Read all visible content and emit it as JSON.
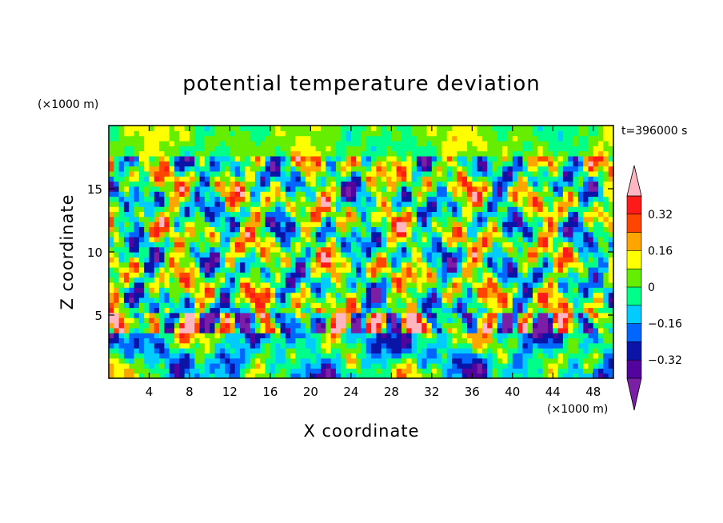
{
  "chart_data": {
    "type": "heatmap",
    "title": "potential temperature deviation",
    "xlabel": "X coordinate",
    "ylabel": "Z coordinate",
    "x_unit_label": "(×1000 m)",
    "y_unit_label": "(×1000 m)",
    "time_label": "t=396000 s",
    "xlim": [
      0,
      50
    ],
    "ylim": [
      0,
      20
    ],
    "x_ticks": [
      4,
      8,
      12,
      16,
      20,
      24,
      28,
      32,
      36,
      40,
      44,
      48
    ],
    "y_ticks": [
      5,
      10,
      15
    ],
    "colorbar": {
      "levels": [
        -0.4,
        -0.32,
        -0.24,
        -0.16,
        -0.08,
        0,
        0.08,
        0.16,
        0.24,
        0.32,
        0.4
      ],
      "tick_values": [
        0.32,
        0.16,
        0,
        -0.16,
        -0.32
      ],
      "tick_labels": [
        "0.32",
        "0.16",
        "0",
        "−0.16",
        "−0.32"
      ],
      "colors": [
        "#7a1fa6",
        "#53049f",
        "#0a14a6",
        "#0066ff",
        "#00ccff",
        "#00ff88",
        "#66ee00",
        "#ffff00",
        "#ffa500",
        "#ff4500",
        "#ff1a1a",
        "#ffb6c1"
      ],
      "extend": "both"
    }
  }
}
